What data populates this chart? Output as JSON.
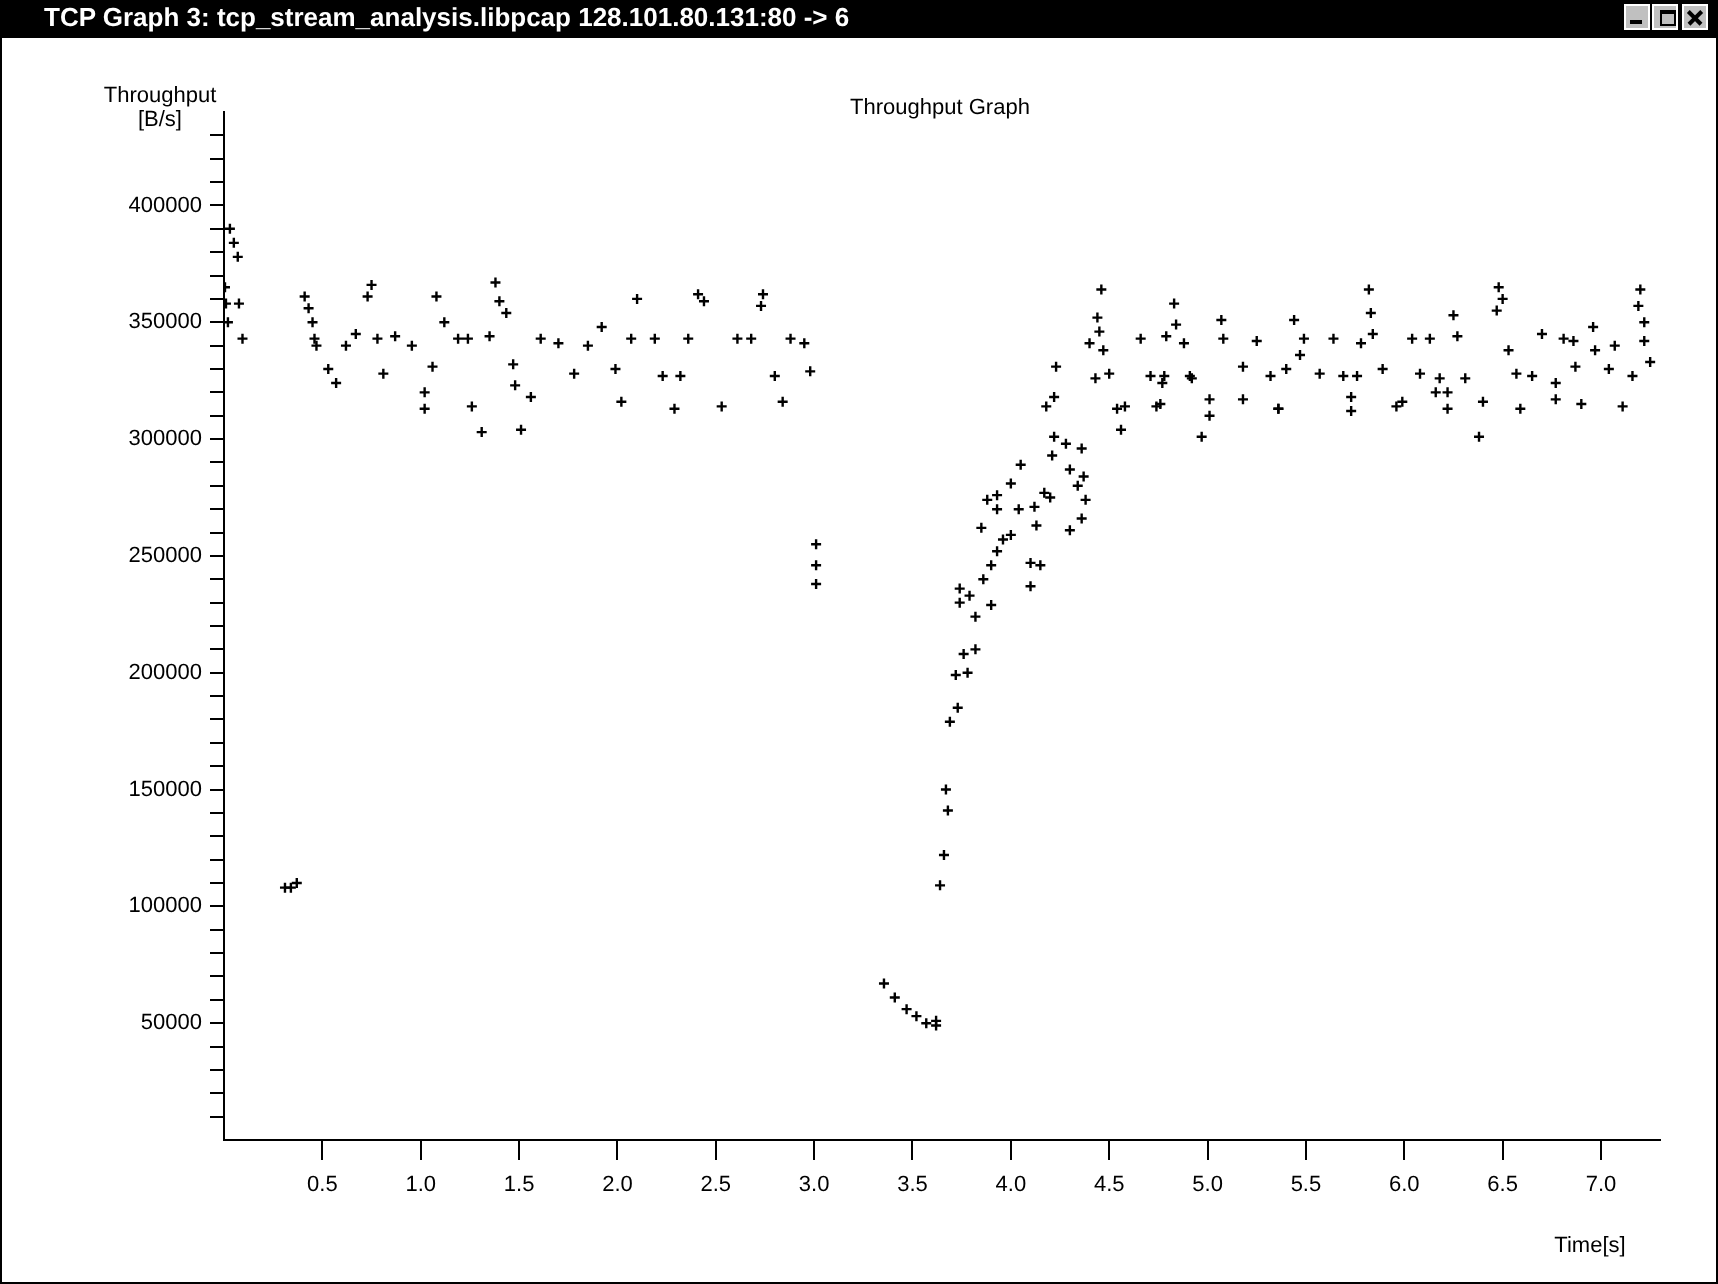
{
  "chart_data": {
    "type": "scatter",
    "title": "TCP Graph 3: tcp_stream_analysis.libpcap 128.101.80.131:80 -> 6",
    "subtitle": "Throughput Graph",
    "xlabel": "Time[s]",
    "ylabel": "Throughput [B/s]",
    "marker": "cross",
    "color": "#000000",
    "xlim": [
      0,
      7.3
    ],
    "ylim": [
      0,
      440000
    ],
    "xticks": [
      0.5,
      {
        "value": 1,
        "label": "1.0"
      },
      1.5,
      {
        "value": 2,
        "label": "2.0"
      },
      2.5,
      {
        "value": 3,
        "label": "3.0"
      },
      3.5,
      {
        "value": 4,
        "label": "4.0"
      },
      4.5,
      {
        "value": 5,
        "label": "5.0"
      },
      5.5,
      {
        "value": 6,
        "label": "6.0"
      },
      6.5,
      {
        "value": 7,
        "label": "7.0"
      }
    ],
    "yticks": [
      {
        "value": 10000,
        "label": null
      },
      {
        "value": 20000,
        "label": null
      },
      {
        "value": 30000,
        "label": null
      },
      {
        "value": 40000,
        "label": null
      },
      50000,
      {
        "value": 60000,
        "label": null
      },
      {
        "value": 70000,
        "label": null
      },
      {
        "value": 80000,
        "label": null
      },
      {
        "value": 90000,
        "label": null
      },
      100000,
      {
        "value": 110000,
        "label": null
      },
      {
        "value": 120000,
        "label": null
      },
      {
        "value": 130000,
        "label": null
      },
      {
        "value": 140000,
        "label": null
      },
      150000,
      {
        "value": 160000,
        "label": null
      },
      {
        "value": 170000,
        "label": null
      },
      {
        "value": 180000,
        "label": null
      },
      {
        "value": 190000,
        "label": null
      },
      200000,
      {
        "value": 210000,
        "label": null
      },
      {
        "value": 220000,
        "label": null
      },
      {
        "value": 230000,
        "label": null
      },
      {
        "value": 240000,
        "label": null
      },
      250000,
      {
        "value": 260000,
        "label": null
      },
      {
        "value": 270000,
        "label": null
      },
      {
        "value": 280000,
        "label": null
      },
      {
        "value": 290000,
        "label": null
      },
      300000,
      {
        "value": 310000,
        "label": null
      },
      {
        "value": 320000,
        "label": null
      },
      {
        "value": 330000,
        "label": null
      },
      {
        "value": 340000,
        "label": null
      },
      350000,
      {
        "value": 360000,
        "label": null
      },
      {
        "value": 370000,
        "label": null
      },
      {
        "value": 380000,
        "label": null
      },
      {
        "value": 390000,
        "label": null
      },
      400000,
      {
        "value": 410000,
        "label": null
      },
      {
        "value": 420000,
        "label": null
      },
      {
        "value": 430000,
        "label": null
      }
    ],
    "x": [
      0.005,
      0.01,
      0.02,
      0.03,
      0.05,
      0.07,
      0.076,
      0.094,
      0.31,
      0.34,
      0.37,
      0.41,
      0.43,
      0.45,
      0.46,
      0.47,
      0.53,
      0.57,
      0.62,
      0.67,
      0.73,
      0.75,
      0.78,
      0.81,
      0.87,
      0.955,
      1.02,
      1.02,
      1.06,
      1.08,
      1.12,
      1.19,
      1.24,
      1.26,
      1.31,
      1.35,
      1.38,
      1.4,
      1.435,
      1.47,
      1.48,
      1.51,
      1.56,
      1.61,
      1.7,
      1.78,
      1.85,
      1.92,
      1.99,
      2.02,
      2.07,
      2.1,
      2.19,
      2.23,
      2.29,
      2.32,
      2.36,
      2.41,
      2.44,
      2.53,
      2.61,
      2.68,
      2.73,
      2.74,
      2.8,
      2.84,
      2.88,
      2.95,
      2.98,
      3.01,
      3.01,
      3.01,
      3.355,
      3.41,
      3.47,
      3.52,
      3.57,
      3.62,
      3.62,
      3.64,
      3.66,
      3.67,
      3.68,
      3.69,
      3.72,
      3.73,
      3.74,
      3.74,
      3.76,
      3.78,
      3.79,
      3.82,
      3.82,
      3.85,
      3.86,
      3.88,
      3.9,
      3.9,
      3.93,
      3.93,
      3.93,
      3.96,
      4.0,
      4.0,
      4.04,
      4.05,
      4.1,
      4.1,
      4.12,
      4.13,
      4.15,
      4.17,
      4.18,
      4.2,
      4.21,
      4.22,
      4.22,
      4.23,
      4.28,
      4.3,
      4.3,
      4.34,
      4.36,
      4.36,
      4.37,
      4.38,
      4.4,
      4.43,
      4.44,
      4.45,
      4.46,
      4.47,
      4.5,
      4.54,
      4.56,
      4.58,
      4.66,
      4.71,
      4.74,
      4.76,
      4.77,
      4.78,
      4.79,
      4.83,
      4.84,
      4.88,
      4.91,
      4.92,
      4.97,
      5.01,
      5.01,
      5.07,
      5.08,
      5.18,
      5.18,
      5.25,
      5.32,
      5.36,
      5.36,
      5.4,
      5.44,
      5.47,
      5.49,
      5.57,
      5.64,
      5.69,
      5.73,
      5.73,
      5.76,
      5.78,
      5.82,
      5.83,
      5.84,
      5.89,
      5.96,
      5.99,
      6.04,
      6.08,
      6.13,
      6.16,
      6.18,
      6.22,
      6.22,
      6.25,
      6.27,
      6.31,
      6.38,
      6.4,
      6.47,
      6.48,
      6.5,
      6.53,
      6.57,
      6.59,
      6.65,
      6.7,
      6.77,
      6.77,
      6.81,
      6.86,
      6.87,
      6.9,
      6.96,
      6.97,
      7.04,
      7.07,
      7.11,
      7.16,
      7.19,
      7.2,
      7.22,
      7.22,
      7.25
    ],
    "values": [
      365000,
      358000,
      350000,
      390000,
      384000,
      378000,
      358000,
      343000,
      108000,
      108000,
      110000,
      361000,
      356000,
      350000,
      343000,
      340000,
      330000,
      324000,
      340000,
      345000,
      361000,
      366000,
      343000,
      328000,
      344000,
      340000,
      320000,
      313000,
      331000,
      361000,
      350000,
      343000,
      343000,
      314000,
      303000,
      344000,
      367000,
      359000,
      354000,
      332000,
      323000,
      304000,
      318000,
      343000,
      341000,
      328000,
      340000,
      348000,
      330000,
      316000,
      343000,
      360000,
      343000,
      327000,
      313000,
      327000,
      343000,
      362000,
      359000,
      314000,
      343000,
      343000,
      357000,
      362000,
      327000,
      316000,
      343000,
      341000,
      329000,
      255000,
      246000,
      238000,
      67000,
      61000,
      56000,
      53000,
      50000,
      49000,
      51000,
      109000,
      122000,
      150000,
      141000,
      179000,
      199000,
      185000,
      236000,
      230000,
      208000,
      200000,
      233000,
      210000,
      224000,
      262000,
      240000,
      274000,
      229000,
      246000,
      252000,
      270000,
      276000,
      257000,
      281000,
      259000,
      270000,
      289000,
      247000,
      237000,
      271000,
      263000,
      246000,
      277000,
      314000,
      275000,
      293000,
      318000,
      301000,
      331000,
      298000,
      287000,
      261000,
      280000,
      296000,
      266000,
      284000,
      274000,
      341000,
      326000,
      352000,
      346000,
      364000,
      338000,
      328000,
      313000,
      304000,
      314000,
      343000,
      327000,
      314000,
      315000,
      324000,
      327000,
      344000,
      358000,
      349000,
      341000,
      327000,
      326000,
      301000,
      317000,
      310000,
      351000,
      343000,
      331000,
      317000,
      342000,
      327000,
      313000,
      313000,
      330000,
      351000,
      336000,
      343000,
      328000,
      343000,
      327000,
      318000,
      312000,
      327000,
      341000,
      364000,
      354000,
      345000,
      330000,
      314000,
      316000,
      343000,
      328000,
      343000,
      320000,
      326000,
      320000,
      313000,
      353000,
      344000,
      326000,
      301000,
      316000,
      355000,
      365000,
      360000,
      338000,
      328000,
      313000,
      327000,
      345000,
      324000,
      317000,
      343000,
      342000,
      331000,
      315000,
      348000,
      338000,
      330000,
      340000,
      314000,
      327000,
      357000,
      364000,
      350000,
      342000,
      333000
    ]
  }
}
